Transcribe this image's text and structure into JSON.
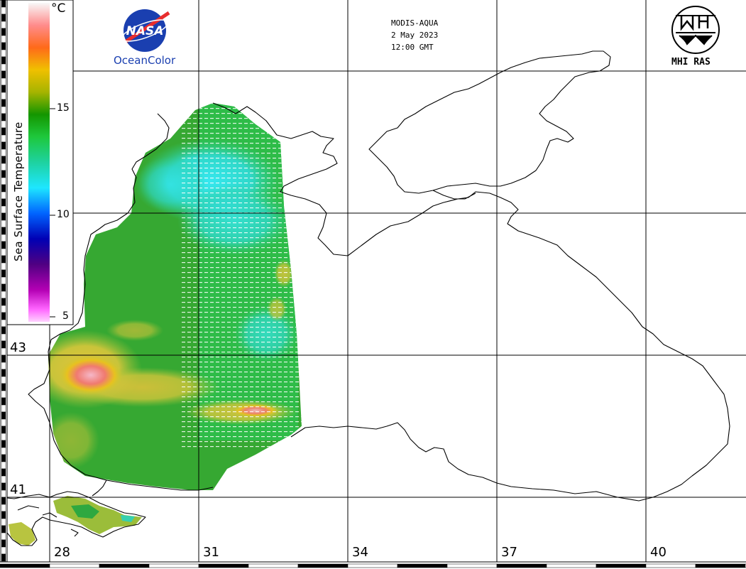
{
  "header": {
    "sensor": "MODIS-AQUA",
    "date": "2 May 2023",
    "time": "12:00 GMT"
  },
  "logos": {
    "nasa_wordmark": "NASA",
    "ocean_color": "OceanColor",
    "mhi": "MHI RAS"
  },
  "colorbar": {
    "title": "Sea Surface Temperature",
    "unit": "°C",
    "ticks": [
      "15",
      "10",
      "5"
    ],
    "stops": [
      "#f8f8f8",
      "#ff8c8c",
      "#ff6a1a",
      "#f0c000",
      "#a6b400",
      "#149600",
      "#1ec83c",
      "#1ed2a0",
      "#1ee6ff",
      "#0064ff",
      "#0000b4",
      "#500082",
      "#b400b4",
      "#ff64ff",
      "#ffd2ff"
    ]
  },
  "axes": {
    "latitude_labels": [
      "43",
      "41"
    ],
    "longitude_labels": [
      "28",
      "31",
      "34",
      "37",
      "40"
    ]
  },
  "icons": [
    "nasa-logo-icon",
    "mhi-ras-logo-icon"
  ]
}
